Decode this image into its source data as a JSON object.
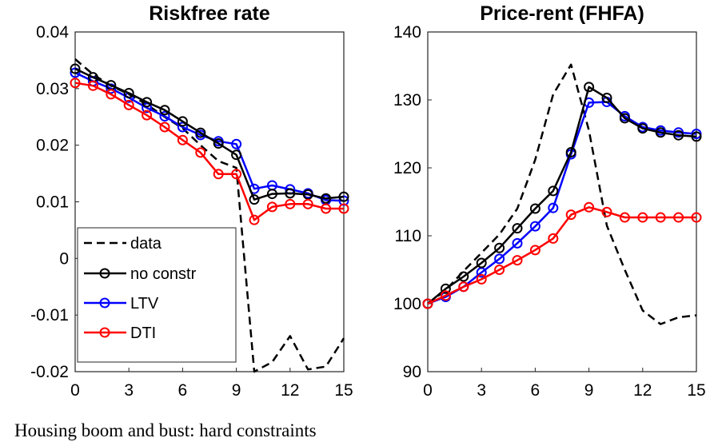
{
  "chart_data": [
    {
      "type": "line",
      "title": "Riskfree rate",
      "xlabel": "",
      "ylabel": "",
      "xlim": [
        0,
        15
      ],
      "ylim": [
        -0.02,
        0.04
      ],
      "xticks": [
        0,
        3,
        6,
        9,
        12,
        15
      ],
      "xtick_labels": [
        "0",
        "3",
        "6",
        "9",
        "12",
        "15"
      ],
      "yticks": [
        -0.02,
        -0.01,
        0,
        0.01,
        0.02,
        0.03,
        0.04
      ],
      "ytick_labels": [
        "-0.02",
        "-0.01",
        "0",
        "0.01",
        "0.02",
        "0.03",
        "0.04"
      ],
      "grid": false,
      "legend_position": "bottom-left",
      "series": [
        {
          "name": "data",
          "color": "#000000",
          "style": "dashed",
          "markers": false,
          "x": [
            0,
            1,
            2,
            3,
            4,
            5,
            6,
            7,
            8,
            9,
            10,
            11,
            12,
            13,
            14,
            15
          ],
          "y": [
            0.0352,
            0.0325,
            0.0305,
            0.029,
            0.0272,
            0.025,
            0.023,
            0.02,
            0.0172,
            0.016,
            -0.02,
            -0.0183,
            -0.0137,
            -0.0196,
            -0.0191,
            -0.0141
          ]
        },
        {
          "name": "no constr",
          "color": "#000000",
          "style": "solid",
          "markers": true,
          "x": [
            0,
            1,
            2,
            3,
            4,
            5,
            6,
            7,
            8,
            9,
            10,
            11,
            12,
            13,
            14,
            15
          ],
          "y": [
            0.0335,
            0.032,
            0.0306,
            0.0292,
            0.0276,
            0.0262,
            0.0242,
            0.0222,
            0.0203,
            0.0183,
            0.0104,
            0.0114,
            0.0115,
            0.0113,
            0.0106,
            0.0109
          ]
        },
        {
          "name": "LTV",
          "color": "#0000ff",
          "style": "solid",
          "markers": true,
          "x": [
            0,
            1,
            2,
            3,
            4,
            5,
            6,
            7,
            8,
            9,
            10,
            11,
            12,
            13,
            14,
            15
          ],
          "y": [
            0.0328,
            0.0313,
            0.03,
            0.0284,
            0.0266,
            0.0251,
            0.0232,
            0.0218,
            0.0207,
            0.0202,
            0.0123,
            0.0129,
            0.0122,
            0.0115,
            0.0103,
            0.0102
          ]
        },
        {
          "name": "DTI",
          "color": "#ff0000",
          "style": "solid",
          "markers": true,
          "x": [
            0,
            1,
            2,
            3,
            4,
            5,
            6,
            7,
            8,
            9,
            10,
            11,
            12,
            13,
            14,
            15
          ],
          "y": [
            0.031,
            0.0305,
            0.029,
            0.0271,
            0.0253,
            0.0232,
            0.0209,
            0.0187,
            0.0149,
            0.0149,
            0.0068,
            0.0091,
            0.0096,
            0.0096,
            0.0088,
            0.0088
          ]
        }
      ]
    },
    {
      "type": "line",
      "title": "Price-rent (FHFA)",
      "xlabel": "",
      "ylabel": "",
      "xlim": [
        0,
        15
      ],
      "ylim": [
        90,
        140
      ],
      "xticks": [
        0,
        3,
        6,
        9,
        12,
        15
      ],
      "xtick_labels": [
        "0",
        "3",
        "6",
        "9",
        "12",
        "15"
      ],
      "yticks": [
        90,
        100,
        110,
        120,
        130,
        140
      ],
      "ytick_labels": [
        "90",
        "100",
        "110",
        "120",
        "130",
        "140"
      ],
      "grid": false,
      "series": [
        {
          "name": "data",
          "color": "#000000",
          "style": "dashed",
          "markers": false,
          "x": [
            0,
            1,
            2,
            3,
            4,
            5,
            6,
            7,
            8,
            9,
            10,
            11,
            12,
            13,
            14,
            15
          ],
          "y": [
            100,
            102,
            104.8,
            107.5,
            110.2,
            114,
            121.2,
            130.8,
            135.2,
            125.5,
            111.5,
            105,
            99,
            97,
            98,
            98.3
          ]
        },
        {
          "name": "no constr",
          "color": "#000000",
          "style": "solid",
          "markers": true,
          "x": [
            0,
            1,
            2,
            3,
            4,
            5,
            6,
            7,
            8,
            9,
            10,
            11,
            12,
            13,
            14,
            15
          ],
          "y": [
            100,
            102.2,
            104,
            106,
            108.2,
            111.1,
            114,
            116.6,
            122.3,
            131.9,
            130.3,
            127.3,
            125.8,
            125.2,
            124.8,
            124.6
          ]
        },
        {
          "name": "LTV",
          "color": "#0000ff",
          "style": "solid",
          "markers": true,
          "x": [
            0,
            1,
            2,
            3,
            4,
            5,
            6,
            7,
            8,
            9,
            10,
            11,
            12,
            13,
            14,
            15
          ],
          "y": [
            100,
            101,
            102.5,
            104.6,
            106.6,
            108.9,
            111.4,
            114.1,
            122,
            129.6,
            129.7,
            127.6,
            126,
            125.5,
            125.2,
            125
          ]
        },
        {
          "name": "DTI",
          "color": "#ff0000",
          "style": "solid",
          "markers": true,
          "x": [
            0,
            1,
            2,
            3,
            4,
            5,
            6,
            7,
            8,
            9,
            10,
            11,
            12,
            13,
            14,
            15
          ],
          "y": [
            100,
            101.2,
            102.5,
            103.6,
            105,
            106.4,
            107.9,
            109.6,
            113.1,
            114.2,
            113.5,
            112.7,
            112.7,
            112.7,
            112.7,
            112.7
          ]
        }
      ]
    }
  ],
  "caption": "Housing boom and bust: hard constraints"
}
